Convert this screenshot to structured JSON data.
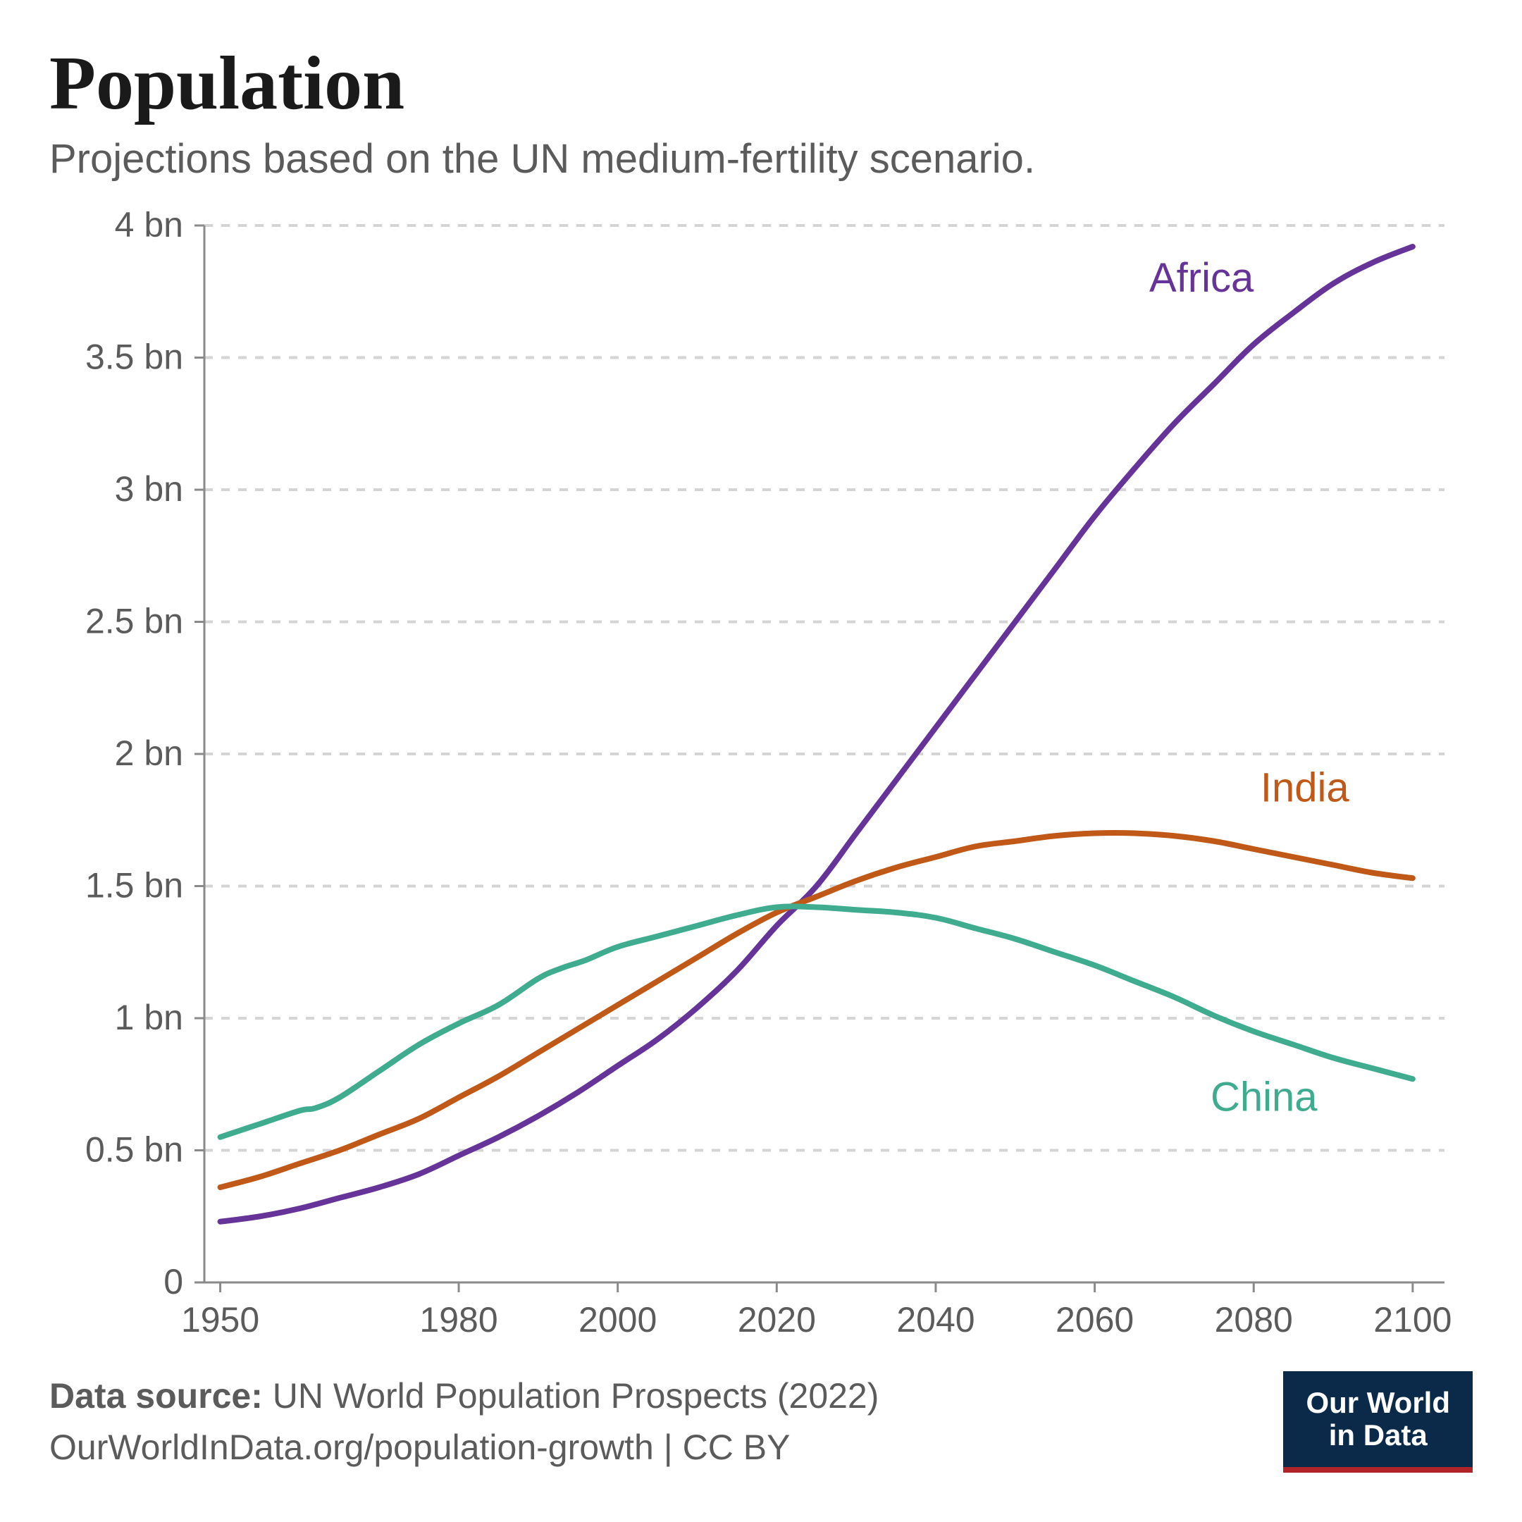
{
  "header": {
    "title": "Population",
    "subtitle": "Projections based on the UN medium-fertility scenario."
  },
  "footer": {
    "source_label": "Data source:",
    "source_value": "UN World Population Prospects (2022)",
    "link_line": "OurWorldInData.org/population-growth | CC BY",
    "logo_line1": "Our World",
    "logo_line2": "in Data",
    "logo_bg": "#0b2a4a",
    "logo_accent": "#b1242a",
    "logo_text_color": "#ffffff"
  },
  "chart": {
    "type": "line",
    "background_color": "#ffffff",
    "grid_color": "#d4d4d4",
    "grid_dash": "12,12",
    "axis_color": "#5b5b5b",
    "axis_line_color": "#8a8a8a",
    "axis_fontsize": 50,
    "series_label_fontsize": 58,
    "line_width": 8,
    "xlim": [
      1948,
      2104
    ],
    "ylim": [
      0,
      4.0
    ],
    "y_ticks": [
      {
        "v": 0,
        "label": "0"
      },
      {
        "v": 0.5,
        "label": "0.5 bn"
      },
      {
        "v": 1.0,
        "label": "1 bn"
      },
      {
        "v": 1.5,
        "label": "1.5 bn"
      },
      {
        "v": 2.0,
        "label": "2 bn"
      },
      {
        "v": 2.5,
        "label": "2.5 bn"
      },
      {
        "v": 3.0,
        "label": "3 bn"
      },
      {
        "v": 3.5,
        "label": "3.5 bn"
      },
      {
        "v": 4.0,
        "label": "4 bn"
      }
    ],
    "x_ticks": [
      {
        "v": 1950,
        "label": "1950"
      },
      {
        "v": 1980,
        "label": "1980"
      },
      {
        "v": 2000,
        "label": "2000"
      },
      {
        "v": 2020,
        "label": "2020"
      },
      {
        "v": 2040,
        "label": "2040"
      },
      {
        "v": 2060,
        "label": "2060"
      },
      {
        "v": 2080,
        "label": "2080"
      },
      {
        "v": 2100,
        "label": "2100"
      }
    ],
    "series": [
      {
        "name": "Africa",
        "label": "Africa",
        "color": "#663399",
        "label_x": 2080,
        "label_y": 3.75,
        "points": [
          [
            1950,
            0.23
          ],
          [
            1955,
            0.25
          ],
          [
            1960,
            0.28
          ],
          [
            1965,
            0.32
          ],
          [
            1970,
            0.36
          ],
          [
            1975,
            0.41
          ],
          [
            1980,
            0.48
          ],
          [
            1985,
            0.55
          ],
          [
            1990,
            0.63
          ],
          [
            1995,
            0.72
          ],
          [
            2000,
            0.82
          ],
          [
            2005,
            0.92
          ],
          [
            2010,
            1.04
          ],
          [
            2015,
            1.18
          ],
          [
            2020,
            1.35
          ],
          [
            2025,
            1.5
          ],
          [
            2030,
            1.7
          ],
          [
            2035,
            1.9
          ],
          [
            2040,
            2.1
          ],
          [
            2045,
            2.3
          ],
          [
            2050,
            2.5
          ],
          [
            2055,
            2.7
          ],
          [
            2060,
            2.9
          ],
          [
            2065,
            3.08
          ],
          [
            2070,
            3.25
          ],
          [
            2075,
            3.4
          ],
          [
            2080,
            3.55
          ],
          [
            2085,
            3.67
          ],
          [
            2090,
            3.78
          ],
          [
            2095,
            3.86
          ],
          [
            2100,
            3.92
          ]
        ]
      },
      {
        "name": "India",
        "label": "India",
        "color": "#c05917",
        "label_x": 2092,
        "label_y": 1.82,
        "points": [
          [
            1950,
            0.36
          ],
          [
            1955,
            0.4
          ],
          [
            1960,
            0.45
          ],
          [
            1965,
            0.5
          ],
          [
            1970,
            0.56
          ],
          [
            1975,
            0.62
          ],
          [
            1980,
            0.7
          ],
          [
            1985,
            0.78
          ],
          [
            1990,
            0.87
          ],
          [
            1995,
            0.96
          ],
          [
            2000,
            1.05
          ],
          [
            2005,
            1.14
          ],
          [
            2010,
            1.23
          ],
          [
            2015,
            1.32
          ],
          [
            2020,
            1.4
          ],
          [
            2025,
            1.46
          ],
          [
            2030,
            1.52
          ],
          [
            2035,
            1.57
          ],
          [
            2040,
            1.61
          ],
          [
            2045,
            1.65
          ],
          [
            2050,
            1.67
          ],
          [
            2055,
            1.69
          ],
          [
            2060,
            1.7
          ],
          [
            2065,
            1.7
          ],
          [
            2070,
            1.69
          ],
          [
            2075,
            1.67
          ],
          [
            2080,
            1.64
          ],
          [
            2085,
            1.61
          ],
          [
            2090,
            1.58
          ],
          [
            2095,
            1.55
          ],
          [
            2100,
            1.53
          ]
        ]
      },
      {
        "name": "China",
        "label": "China",
        "color": "#3fab8f",
        "label_x": 2088,
        "label_y": 0.65,
        "points": [
          [
            1950,
            0.55
          ],
          [
            1955,
            0.6
          ],
          [
            1960,
            0.65
          ],
          [
            1962,
            0.66
          ],
          [
            1965,
            0.7
          ],
          [
            1970,
            0.8
          ],
          [
            1975,
            0.9
          ],
          [
            1980,
            0.98
          ],
          [
            1985,
            1.05
          ],
          [
            1990,
            1.15
          ],
          [
            1993,
            1.19
          ],
          [
            1996,
            1.22
          ],
          [
            2000,
            1.27
          ],
          [
            2005,
            1.31
          ],
          [
            2010,
            1.35
          ],
          [
            2015,
            1.39
          ],
          [
            2020,
            1.42
          ],
          [
            2025,
            1.42
          ],
          [
            2030,
            1.41
          ],
          [
            2035,
            1.4
          ],
          [
            2040,
            1.38
          ],
          [
            2045,
            1.34
          ],
          [
            2050,
            1.3
          ],
          [
            2055,
            1.25
          ],
          [
            2060,
            1.2
          ],
          [
            2065,
            1.14
          ],
          [
            2070,
            1.08
          ],
          [
            2075,
            1.01
          ],
          [
            2080,
            0.95
          ],
          [
            2085,
            0.9
          ],
          [
            2090,
            0.85
          ],
          [
            2095,
            0.81
          ],
          [
            2100,
            0.77
          ]
        ]
      }
    ]
  }
}
